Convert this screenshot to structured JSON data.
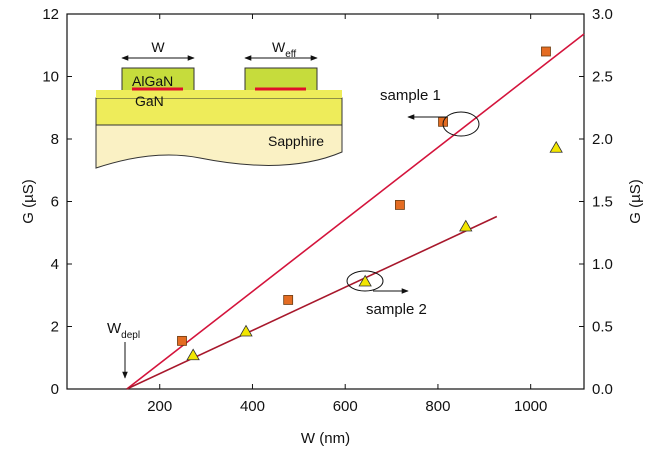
{
  "chart_data": {
    "type": "scatter",
    "xlabel": "W (nm)",
    "ylabel": "G (µS)",
    "y2label": "G (µS)",
    "xlim": [
      0,
      1115
    ],
    "xticks": [
      200,
      400,
      600,
      800,
      1000
    ],
    "ylim": [
      0,
      12
    ],
    "yticks": [
      0,
      2,
      4,
      6,
      8,
      10,
      12
    ],
    "y2lim": [
      0,
      3
    ],
    "y2ticks": [
      {
        "value": 0,
        "label": "0.0"
      },
      {
        "value": 0.5,
        "label": "0.5"
      },
      {
        "value": 1,
        "label": "1.0"
      },
      {
        "value": 1.5,
        "label": "1.5"
      },
      {
        "value": 2,
        "label": "2.0"
      },
      {
        "value": 2.5,
        "label": "2.5"
      },
      {
        "value": 3,
        "label": "3.0"
      }
    ],
    "series": [
      {
        "name": "sample 1",
        "marker": "square",
        "color": "#e46c22",
        "x": [
          248,
          477,
          718,
          811,
          1033
        ],
        "values": [
          1.54,
          2.85,
          5.89,
          8.55,
          10.8
        ]
      },
      {
        "name": "sample 2",
        "marker": "triangle",
        "color": "#f2e600",
        "axis": "y2",
        "x": [
          272,
          386,
          643,
          860,
          1055
        ],
        "values": [
          0.27,
          0.46,
          0.86,
          1.3,
          1.93
        ]
      }
    ],
    "lines": [
      {
        "color": "#d4143c",
        "x": [
          129,
          1115
        ],
        "values": [
          0,
          11.36
        ]
      },
      {
        "color": "#a8182c",
        "axis": "y2",
        "x": [
          129,
          927
        ],
        "values": [
          0,
          1.38
        ]
      }
    ],
    "annotations": {
      "w_depl": "W",
      "w_depl_sub": "depl"
    },
    "inset": {
      "w": "W",
      "w_eff": "W",
      "w_eff_sub": "eff",
      "algan": "AlGaN",
      "gan": "GaN",
      "sapphire": "Sapphire"
    }
  }
}
